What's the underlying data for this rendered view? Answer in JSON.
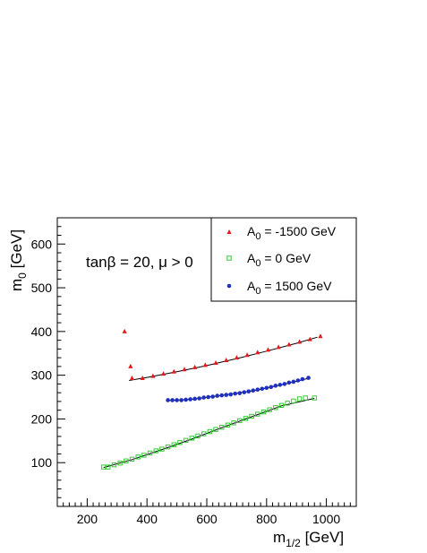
{
  "chart_data": {
    "type": "scatter",
    "title": "",
    "annotation": "tanβ = 20, μ > 0",
    "xlabel_main": "m",
    "xlabel_sub": "1/2",
    "xlabel_unit": " [GeV]",
    "ylabel_main": "m",
    "ylabel_sub": "0",
    "ylabel_unit": " [GeV]",
    "xlim": [
      100,
      1100
    ],
    "ylim": [
      0,
      660
    ],
    "xticks": [
      200,
      400,
      600,
      800,
      1000
    ],
    "yticks": [
      100,
      200,
      300,
      400,
      500,
      600
    ],
    "legend_position": "top-right",
    "series": [
      {
        "legend_main": "A",
        "legend_sub": "0",
        "legend_rest": " = -1500 GeV",
        "marker": "triangle",
        "color": "#e41a1c",
        "points": [
          [
            325,
            400
          ],
          [
            345,
            320
          ],
          [
            350,
            293
          ],
          [
            385,
            293
          ],
          [
            420,
            298
          ],
          [
            455,
            303
          ],
          [
            490,
            308
          ],
          [
            525,
            313
          ],
          [
            560,
            318
          ],
          [
            595,
            323
          ],
          [
            630,
            328
          ],
          [
            665,
            334
          ],
          [
            700,
            340
          ],
          [
            735,
            346
          ],
          [
            770,
            352
          ],
          [
            805,
            358
          ],
          [
            840,
            364
          ],
          [
            875,
            370
          ],
          [
            910,
            376
          ],
          [
            945,
            382
          ],
          [
            980,
            389
          ]
        ],
        "fit": [
          [
            340,
            288
          ],
          [
            400,
            295
          ],
          [
            500,
            308
          ],
          [
            600,
            322
          ],
          [
            700,
            338
          ],
          [
            800,
            355
          ],
          [
            900,
            373
          ],
          [
            970,
            387
          ]
        ]
      },
      {
        "legend_main": "A",
        "legend_sub": "0",
        "legend_rest": " = 0 GeV",
        "marker": "open-square",
        "color": "#33cc33",
        "points": [
          [
            255,
            90
          ],
          [
            270,
            90
          ],
          [
            290,
            95
          ],
          [
            310,
            99
          ],
          [
            330,
            104
          ],
          [
            350,
            108
          ],
          [
            370,
            113
          ],
          [
            390,
            117
          ],
          [
            410,
            122
          ],
          [
            430,
            127
          ],
          [
            450,
            131
          ],
          [
            470,
            136
          ],
          [
            490,
            141
          ],
          [
            510,
            146
          ],
          [
            530,
            151
          ],
          [
            550,
            156
          ],
          [
            570,
            161
          ],
          [
            590,
            166
          ],
          [
            610,
            171
          ],
          [
            630,
            176
          ],
          [
            650,
            181
          ],
          [
            670,
            186
          ],
          [
            690,
            191
          ],
          [
            710,
            196
          ],
          [
            730,
            201
          ],
          [
            750,
            206
          ],
          [
            770,
            211
          ],
          [
            790,
            216
          ],
          [
            810,
            221
          ],
          [
            830,
            226
          ],
          [
            850,
            231
          ],
          [
            870,
            236
          ],
          [
            890,
            241
          ],
          [
            910,
            246
          ],
          [
            930,
            248
          ],
          [
            960,
            248
          ]
        ],
        "fit": [
          [
            255,
            89
          ],
          [
            350,
            107
          ],
          [
            450,
            130
          ],
          [
            550,
            154
          ],
          [
            650,
            180
          ],
          [
            750,
            205
          ],
          [
            850,
            230
          ],
          [
            960,
            247
          ]
        ]
      },
      {
        "legend_main": "A",
        "legend_sub": "0",
        "legend_rest": " = 1500 GeV",
        "marker": "dot",
        "color": "#1f2fbf",
        "points": [
          [
            470,
            243
          ],
          [
            485,
            243
          ],
          [
            500,
            243
          ],
          [
            515,
            243
          ],
          [
            530,
            244
          ],
          [
            545,
            245
          ],
          [
            560,
            246
          ],
          [
            575,
            247
          ],
          [
            590,
            249
          ],
          [
            605,
            250
          ],
          [
            620,
            251
          ],
          [
            635,
            253
          ],
          [
            650,
            254
          ],
          [
            665,
            255
          ],
          [
            680,
            256
          ],
          [
            695,
            258
          ],
          [
            710,
            259
          ],
          [
            725,
            261
          ],
          [
            740,
            263
          ],
          [
            755,
            265
          ],
          [
            770,
            267
          ],
          [
            785,
            269
          ],
          [
            800,
            271
          ],
          [
            815,
            273
          ],
          [
            830,
            276
          ],
          [
            845,
            278
          ],
          [
            860,
            280
          ],
          [
            875,
            283
          ],
          [
            890,
            285
          ],
          [
            905,
            288
          ],
          [
            920,
            291
          ],
          [
            940,
            294
          ]
        ],
        "fit": [
          [
            470,
            242
          ],
          [
            550,
            245
          ],
          [
            650,
            254
          ],
          [
            750,
            264
          ],
          [
            850,
            278
          ],
          [
            940,
            293
          ]
        ]
      }
    ]
  }
}
